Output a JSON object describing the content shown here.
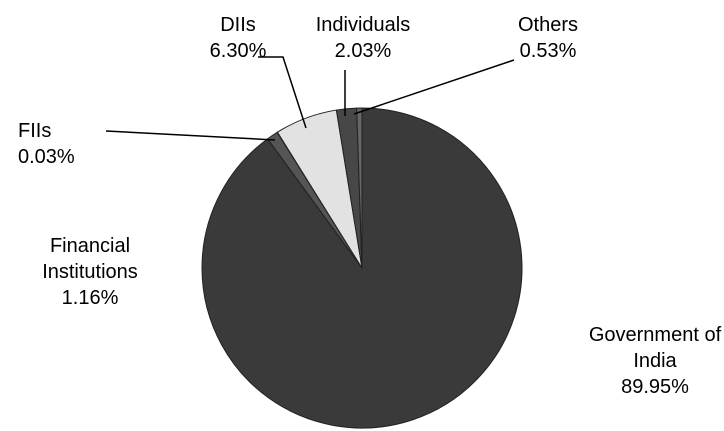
{
  "chart_data": {
    "type": "pie",
    "categories": [
      "Government of India",
      "Financial Institutions",
      "FIIs",
      "DIIs",
      "Individuals",
      "Others"
    ],
    "values": [
      89.95,
      1.16,
      0.03,
      6.3,
      2.03,
      0.53
    ],
    "value_labels": [
      "89.95%",
      "1.16%",
      "0.03%",
      "6.30%",
      "2.03%",
      "0.53%"
    ],
    "colors": [
      "#3a3a3a",
      "#555555",
      "#777777",
      "#e2e2e2",
      "#474747",
      "#666666"
    ]
  }
}
